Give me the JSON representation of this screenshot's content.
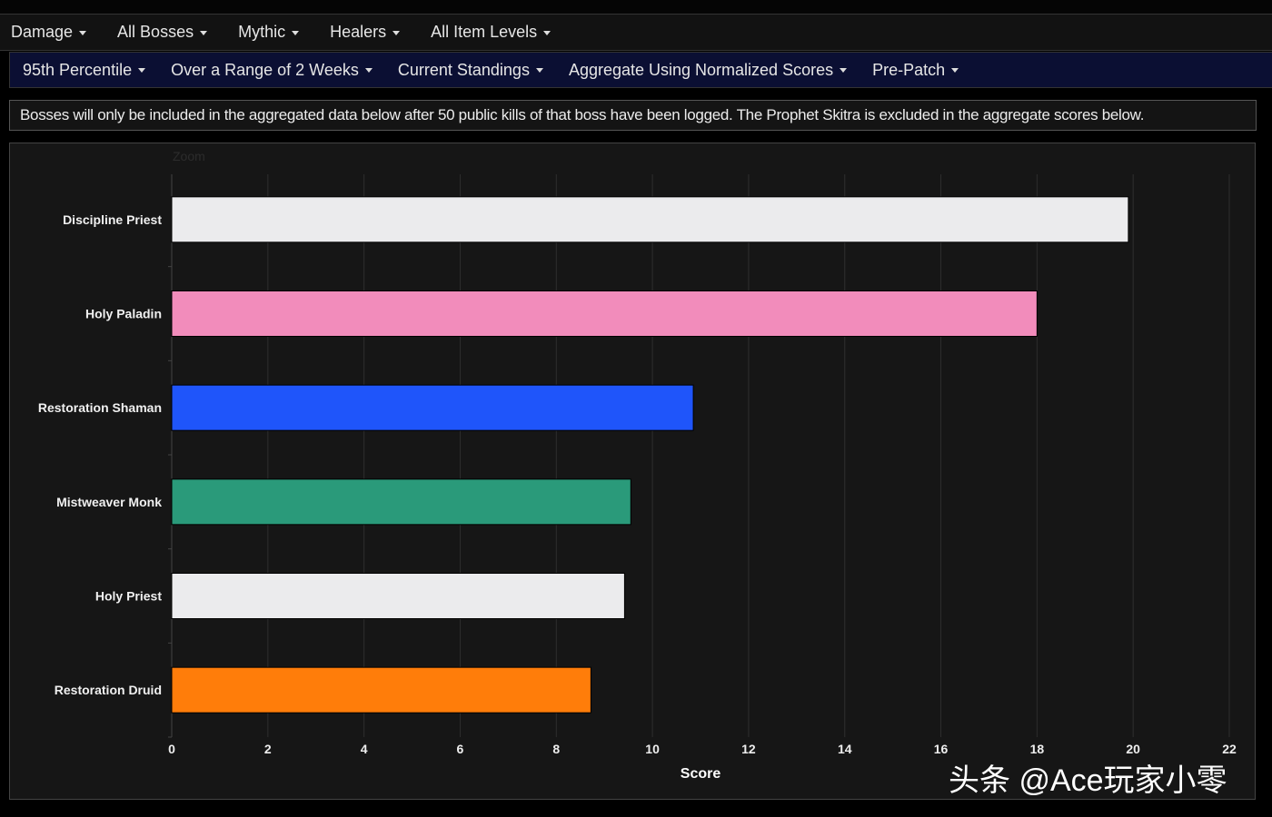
{
  "nav_primary": [
    {
      "label": "Damage"
    },
    {
      "label": "All Bosses"
    },
    {
      "label": "Mythic"
    },
    {
      "label": "Healers"
    },
    {
      "label": "All Item Levels"
    }
  ],
  "nav_secondary": [
    {
      "label": "95th Percentile"
    },
    {
      "label": "Over a Range of 2 Weeks"
    },
    {
      "label": "Current Standings"
    },
    {
      "label": "Aggregate Using Normalized Scores"
    },
    {
      "label": "Pre-Patch"
    }
  ],
  "notice": "Bosses will only be included in the aggregated data below after 50 public kills of that boss have been logged. The Prophet Skitra is excluded in the aggregate scores below.",
  "zoom_label": "Zoom",
  "watermark": "头条 @Ace玩家小零",
  "chart_data": {
    "type": "bar",
    "orientation": "horizontal",
    "categories": [
      "Discipline Priest",
      "Holy Paladin",
      "Restoration Shaman",
      "Mistweaver Monk",
      "Holy Priest",
      "Restoration Druid"
    ],
    "values": [
      19.9,
      18.0,
      10.85,
      9.55,
      9.42,
      8.72
    ],
    "colors": [
      "#ebebed",
      "#f28cbb",
      "#1f55fa",
      "#2a9a7a",
      "#ebebed",
      "#ff7d0a"
    ],
    "xlabel": "Score",
    "xlim": [
      0,
      22
    ],
    "xticks": [
      "0",
      "2",
      "4",
      "6",
      "8",
      "10",
      "12",
      "14",
      "16",
      "18",
      "20",
      "22"
    ],
    "grid": true
  }
}
